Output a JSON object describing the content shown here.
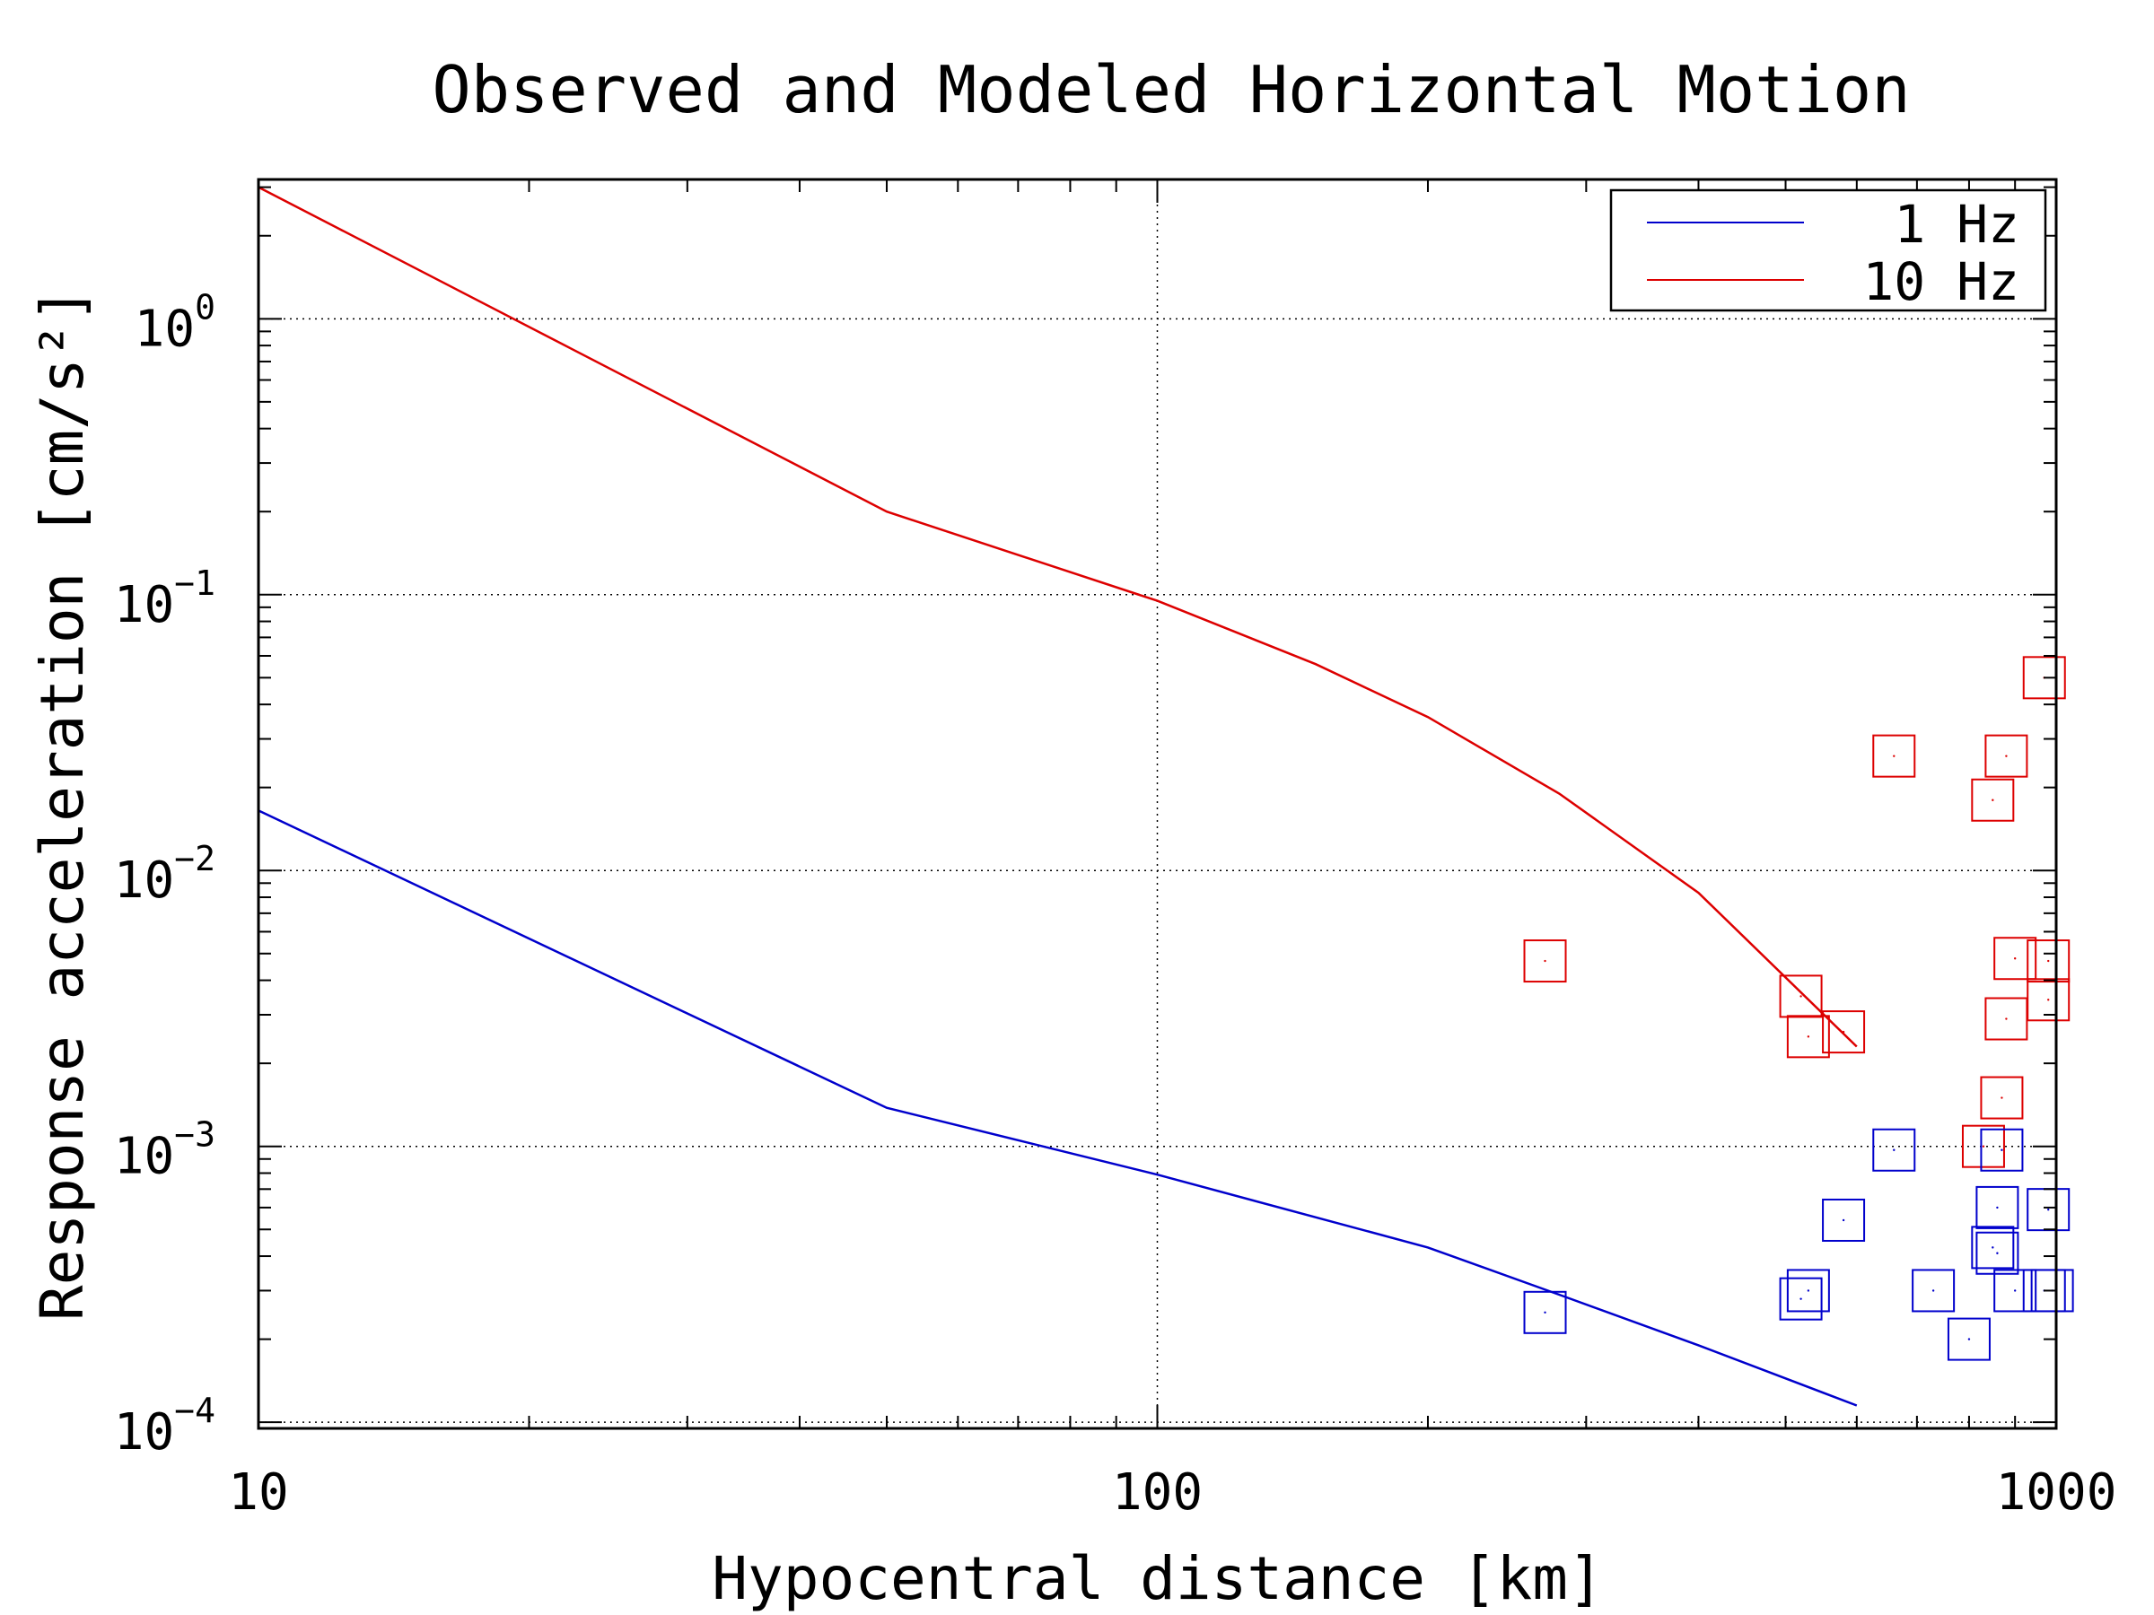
{
  "chart_data": {
    "type": "scatter",
    "title": "Observed and Modeled Horizontal Motion",
    "xlabel": "Hypocentral distance [km]",
    "ylabel": "Response acceleration [cm/s²]",
    "x_scale": "log",
    "y_scale": "log",
    "xlim": [
      10,
      1000
    ],
    "ylim": [
      9.5e-05,
      3.2
    ],
    "x_ticks": [
      {
        "value": 10,
        "label": "10"
      },
      {
        "value": 100,
        "label": "100"
      },
      {
        "value": 1000,
        "label": "1000"
      }
    ],
    "y_ticks": [
      {
        "value": 1,
        "base": "10",
        "exp": "0"
      },
      {
        "value": 0.1,
        "base": "10",
        "exp": "−1"
      },
      {
        "value": 0.01,
        "base": "10",
        "exp": "−2"
      },
      {
        "value": 0.001,
        "base": "10",
        "exp": "−3"
      },
      {
        "value": 0.0001,
        "base": "10",
        "exp": "−4"
      }
    ],
    "grid": "major, dotted",
    "legend_position": "top-right",
    "colors": {
      "blue": "#0000cc",
      "red": "#dd0000"
    },
    "series": [
      {
        "name": "1 Hz",
        "kind": "line",
        "color": "#0000cc",
        "x": [
          10,
          50,
          100,
          200,
          280,
          400,
          600
        ],
        "y": [
          0.0165,
          0.00138,
          0.00079,
          0.00043,
          0.00029,
          0.00019,
          0.000115
        ]
      },
      {
        "name": "10 Hz",
        "kind": "line",
        "color": "#dd0000",
        "x": [
          10,
          50,
          100,
          150,
          200,
          280,
          400,
          600
        ],
        "y": [
          3.0,
          0.2,
          0.095,
          0.056,
          0.036,
          0.019,
          0.0083,
          0.0023
        ]
      },
      {
        "kind": "markers",
        "marker": "square",
        "color": "#dd0000",
        "x": [
          270,
          520,
          530,
          580,
          660,
          830,
          850,
          870,
          880,
          880,
          900,
          970,
          980,
          980
        ],
        "y": [
          0.0047,
          0.0035,
          0.0025,
          0.0026,
          0.026,
          0.001,
          0.018,
          0.0015,
          0.026,
          0.0029,
          0.0048,
          0.05,
          0.0047,
          0.0034
        ]
      },
      {
        "kind": "markers",
        "marker": "square",
        "color": "#0000cc",
        "x": [
          270,
          520,
          530,
          580,
          660,
          730,
          800,
          850,
          860,
          860,
          870,
          900,
          970,
          980,
          990
        ],
        "y": [
          0.00025,
          0.00028,
          0.0003,
          0.00054,
          0.00097,
          0.0003,
          0.0002,
          0.00043,
          0.00041,
          0.0006,
          0.00097,
          0.0003,
          0.0003,
          0.00059,
          0.0003
        ]
      }
    ]
  }
}
